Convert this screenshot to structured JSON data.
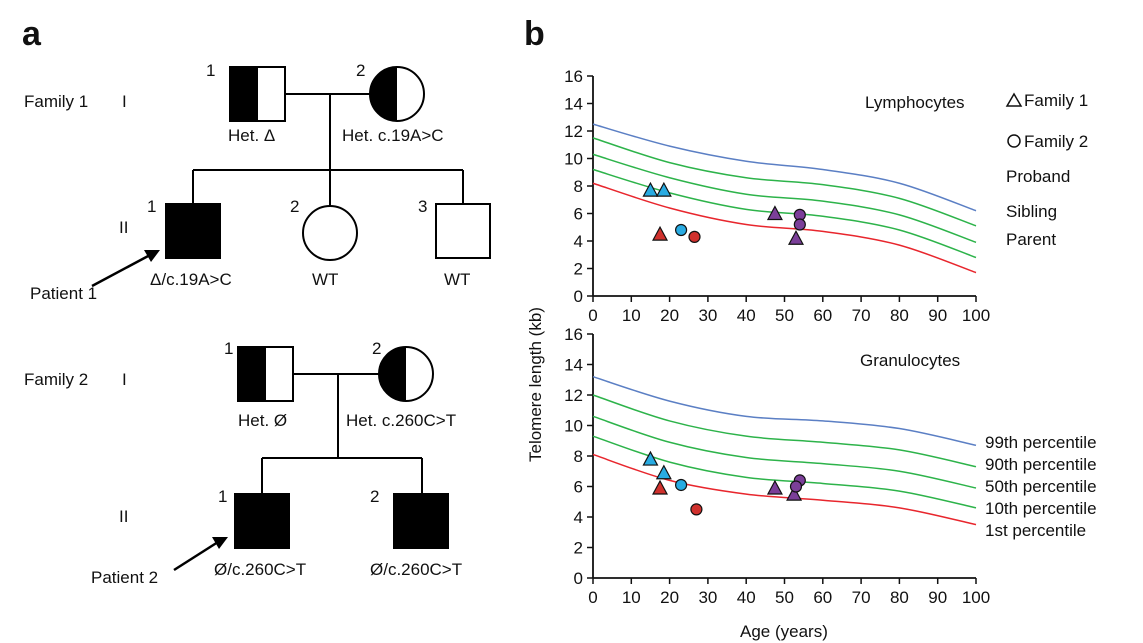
{
  "panel_a": {
    "label": "a",
    "gen_I": "I",
    "gen_II": "II",
    "family1": {
      "label": "Family 1",
      "father": {
        "num": "1",
        "label": "Het. Δ"
      },
      "mother": {
        "num": "2",
        "label": "Het. c.19A>C"
      },
      "children": [
        {
          "num": "1",
          "label": "Δ/c.19A>C"
        },
        {
          "num": "2",
          "label": "WT"
        },
        {
          "num": "3",
          "label": "WT"
        }
      ],
      "arrow_label": "Patient 1"
    },
    "family2": {
      "label": "Family 2",
      "father": {
        "num": "1",
        "label": "Het. Ø"
      },
      "mother": {
        "num": "2",
        "label": "Het. c.260C>T"
      },
      "children": [
        {
          "num": "1",
          "label": "Ø/c.260C>T"
        },
        {
          "num": "2",
          "label": "Ø/c.260C>T"
        }
      ],
      "arrow_label": "Patient 2"
    }
  },
  "panel_b": {
    "label": "b",
    "legend": {
      "family1": "Family 1",
      "family2": "Family 2",
      "proband": "Proband",
      "sibling": "Sibling",
      "parent": "Parent"
    },
    "colors": {
      "proband": "#d0312d",
      "sibling": "#29abe2",
      "parent": "#7b3f99",
      "p99": "#5b7fc4",
      "p_mid": "#2db34a",
      "p1": "#e8262d"
    },
    "percentile_labels": [
      "99th percentile",
      "90th percentile",
      "50th percentile",
      "10th percentile",
      "1st percentile"
    ],
    "ylabel": "Telomere length (kb)",
    "xlabel": "Age (years)"
  },
  "chart_data": [
    {
      "type": "scatter",
      "title": "Lymphocytes",
      "xlim": [
        0,
        100
      ],
      "ylim": [
        0,
        16
      ],
      "xticks": [
        0,
        10,
        20,
        30,
        40,
        50,
        60,
        70,
        80,
        90,
        100
      ],
      "yticks": [
        0,
        2,
        4,
        6,
        8,
        10,
        12,
        14,
        16
      ],
      "percentile_curves": [
        {
          "name": "99th percentile",
          "x": [
            0,
            20,
            40,
            60,
            80,
            100
          ],
          "y": [
            12.5,
            10.9,
            9.8,
            9.2,
            8.2,
            6.2
          ]
        },
        {
          "name": "90th percentile",
          "x": [
            0,
            20,
            40,
            60,
            80,
            100
          ],
          "y": [
            11.5,
            9.7,
            8.6,
            8.1,
            7.1,
            5.1
          ]
        },
        {
          "name": "50th percentile",
          "x": [
            0,
            20,
            40,
            60,
            80,
            100
          ],
          "y": [
            10.3,
            8.6,
            7.4,
            6.9,
            5.9,
            3.9
          ]
        },
        {
          "name": "10th percentile",
          "x": [
            0,
            20,
            40,
            60,
            80,
            100
          ],
          "y": [
            9.2,
            7.5,
            6.3,
            5.8,
            4.8,
            2.8
          ]
        },
        {
          "name": "1st percentile",
          "x": [
            0,
            20,
            40,
            60,
            80,
            100
          ],
          "y": [
            8.2,
            6.4,
            5.2,
            4.7,
            3.7,
            1.7
          ]
        }
      ],
      "points": [
        {
          "family": "Family 1",
          "role": "Sibling",
          "x": 15,
          "y": 7.7
        },
        {
          "family": "Family 1",
          "role": "Sibling",
          "x": 18.5,
          "y": 7.7
        },
        {
          "family": "Family 1",
          "role": "Proband",
          "x": 17.5,
          "y": 4.5
        },
        {
          "family": "Family 2",
          "role": "Sibling",
          "x": 23,
          "y": 4.8
        },
        {
          "family": "Family 2",
          "role": "Proband",
          "x": 26.5,
          "y": 4.3
        },
        {
          "family": "Family 1",
          "role": "Parent",
          "x": 47.5,
          "y": 6.0
        },
        {
          "family": "Family 1",
          "role": "Parent",
          "x": 53,
          "y": 4.2
        },
        {
          "family": "Family 2",
          "role": "Parent",
          "x": 54,
          "y": 5.9
        },
        {
          "family": "Family 2",
          "role": "Parent",
          "x": 54,
          "y": 5.2
        }
      ]
    },
    {
      "type": "scatter",
      "title": "Granulocytes",
      "xlim": [
        0,
        100
      ],
      "ylim": [
        0,
        16
      ],
      "xticks": [
        0,
        10,
        20,
        30,
        40,
        50,
        60,
        70,
        80,
        90,
        100
      ],
      "yticks": [
        0,
        2,
        4,
        6,
        8,
        10,
        12,
        14,
        16
      ],
      "percentile_curves": [
        {
          "name": "99th percentile",
          "x": [
            0,
            20,
            40,
            60,
            80,
            100
          ],
          "y": [
            13.2,
            11.6,
            10.6,
            10.3,
            9.8,
            8.7
          ]
        },
        {
          "name": "90th percentile",
          "x": [
            0,
            20,
            40,
            60,
            80,
            100
          ],
          "y": [
            12.0,
            10.3,
            9.3,
            8.9,
            8.4,
            7.3
          ]
        },
        {
          "name": "50th percentile",
          "x": [
            0,
            20,
            40,
            60,
            80,
            100
          ],
          "y": [
            10.6,
            8.9,
            7.9,
            7.5,
            7.0,
            5.9
          ]
        },
        {
          "name": "10th percentile",
          "x": [
            0,
            20,
            40,
            60,
            80,
            100
          ],
          "y": [
            9.3,
            7.6,
            6.6,
            6.2,
            5.7,
            4.6
          ]
        },
        {
          "name": "1st percentile",
          "x": [
            0,
            20,
            40,
            60,
            80,
            100
          ],
          "y": [
            8.1,
            6.4,
            5.5,
            5.1,
            4.6,
            3.5
          ]
        }
      ],
      "points": [
        {
          "family": "Family 1",
          "role": "Sibling",
          "x": 15,
          "y": 7.8
        },
        {
          "family": "Family 1",
          "role": "Sibling",
          "x": 18.5,
          "y": 6.9
        },
        {
          "family": "Family 1",
          "role": "Proband",
          "x": 17.5,
          "y": 5.9
        },
        {
          "family": "Family 2",
          "role": "Sibling",
          "x": 23,
          "y": 6.1
        },
        {
          "family": "Family 2",
          "role": "Proband",
          "x": 27,
          "y": 4.5
        },
        {
          "family": "Family 1",
          "role": "Parent",
          "x": 47.5,
          "y": 5.9
        },
        {
          "family": "Family 1",
          "role": "Parent",
          "x": 52.5,
          "y": 5.5
        },
        {
          "family": "Family 2",
          "role": "Parent",
          "x": 54,
          "y": 6.4
        },
        {
          "family": "Family 2",
          "role": "Parent",
          "x": 53,
          "y": 6.0
        }
      ]
    }
  ]
}
